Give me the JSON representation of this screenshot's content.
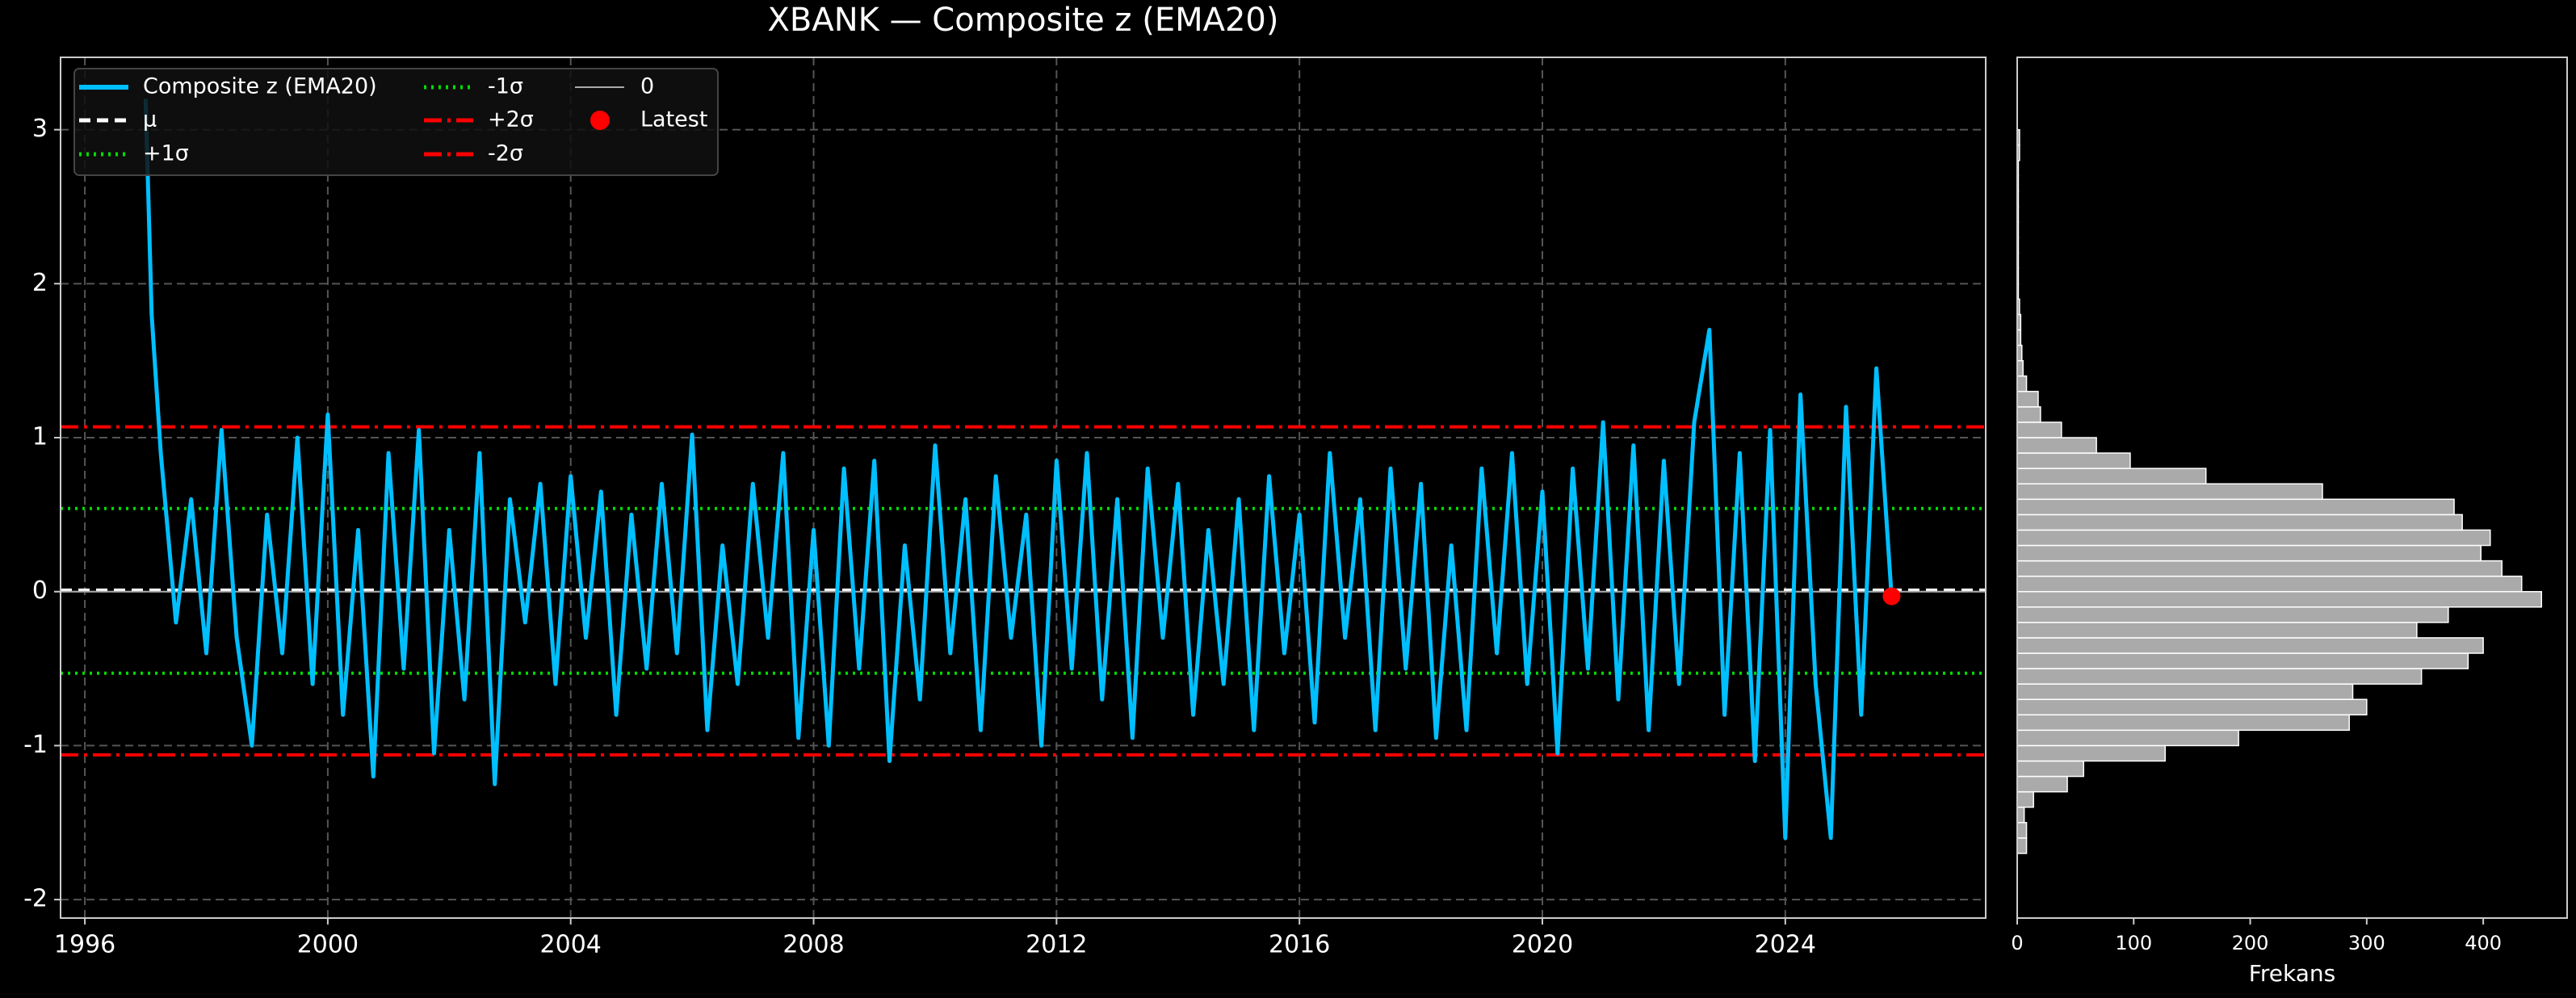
{
  "chart_data": [
    {
      "type": "line",
      "title": "XBANK — Composite z (EMA20)",
      "x": [
        1997.0,
        1997.1,
        1997.25,
        1997.5,
        1997.75,
        1998,
        1998.25,
        1998.5,
        1998.75,
        1999,
        1999.25,
        1999.5,
        1999.75,
        2000,
        2000.25,
        2000.5,
        2000.75,
        2001,
        2001.25,
        2001.5,
        2001.75,
        2002,
        2002.25,
        2002.5,
        2002.75,
        2003,
        2003.25,
        2003.5,
        2003.75,
        2004,
        2004.25,
        2004.5,
        2004.75,
        2005,
        2005.25,
        2005.5,
        2005.75,
        2006,
        2006.25,
        2006.5,
        2006.75,
        2007,
        2007.25,
        2007.5,
        2007.75,
        2008,
        2008.25,
        2008.5,
        2008.75,
        2009,
        2009.25,
        2009.5,
        2009.75,
        2010,
        2010.25,
        2010.5,
        2010.75,
        2011,
        2011.25,
        2011.5,
        2011.75,
        2012,
        2012.25,
        2012.5,
        2012.75,
        2013,
        2013.25,
        2013.5,
        2013.75,
        2014,
        2014.25,
        2014.5,
        2014.75,
        2015,
        2015.25,
        2015.5,
        2015.75,
        2016,
        2016.25,
        2016.5,
        2016.75,
        2017,
        2017.25,
        2017.5,
        2017.75,
        2018,
        2018.25,
        2018.5,
        2018.75,
        2019,
        2019.25,
        2019.5,
        2019.75,
        2020,
        2020.25,
        2020.5,
        2020.75,
        2021,
        2021.25,
        2021.5,
        2021.75,
        2022,
        2022.25,
        2022.5,
        2022.75,
        2023,
        2023.25,
        2023.5,
        2023.75,
        2024,
        2024.25,
        2024.5,
        2024.75,
        2025,
        2025.25,
        2025.5,
        2025.75
      ],
      "series": [
        {
          "name": "Composite z (EMA20)",
          "color": "#00bfff",
          "values": [
            3.2,
            1.8,
            0.9,
            -0.2,
            0.6,
            -0.4,
            1.05,
            -0.3,
            -1.0,
            0.5,
            -0.4,
            1.0,
            -0.6,
            1.15,
            -0.8,
            0.4,
            -1.2,
            0.9,
            -0.5,
            1.05,
            -1.05,
            0.4,
            -0.7,
            0.9,
            -1.25,
            0.6,
            -0.2,
            0.7,
            -0.6,
            0.75,
            -0.3,
            0.65,
            -0.8,
            0.5,
            -0.5,
            0.7,
            -0.4,
            1.02,
            -0.9,
            0.3,
            -0.6,
            0.7,
            -0.3,
            0.9,
            -0.95,
            0.4,
            -1.0,
            0.8,
            -0.5,
            0.85,
            -1.1,
            0.3,
            -0.7,
            0.95,
            -0.4,
            0.6,
            -0.9,
            0.75,
            -0.3,
            0.5,
            -1.0,
            0.85,
            -0.5,
            0.9,
            -0.7,
            0.6,
            -0.95,
            0.8,
            -0.3,
            0.7,
            -0.8,
            0.4,
            -0.6,
            0.6,
            -0.9,
            0.75,
            -0.4,
            0.5,
            -0.85,
            0.9,
            -0.3,
            0.6,
            -0.9,
            0.8,
            -0.5,
            0.7,
            -0.95,
            0.3,
            -0.9,
            0.8,
            -0.4,
            0.9,
            -0.6,
            0.65,
            -1.05,
            0.8,
            -0.5,
            1.1,
            -0.7,
            0.95,
            -0.9,
            0.85,
            -0.6,
            1.1,
            1.7,
            -0.8,
            0.9,
            -1.1,
            1.05,
            -1.6,
            1.28,
            -0.6,
            -1.6,
            1.2,
            -0.8,
            1.45,
            -0.03
          ]
        }
      ],
      "hlines": [
        {
          "name": "μ",
          "value": 0.01,
          "color": "#ffffff",
          "style": "dashed"
        },
        {
          "name": "+1σ",
          "value": 0.54,
          "color": "#00dd00",
          "style": "dotted"
        },
        {
          "name": "-1σ",
          "value": -0.53,
          "color": "#00dd00",
          "style": "dotted"
        },
        {
          "name": "+2σ",
          "value": 1.07,
          "color": "#ff0000",
          "style": "dashdot"
        },
        {
          "name": "-2σ",
          "value": -1.06,
          "color": "#ff0000",
          "style": "dashdot"
        },
        {
          "name": "0",
          "value": 0,
          "color": "#aaaaaa",
          "style": "solid"
        }
      ],
      "point": {
        "name": "Latest",
        "x": 2025.75,
        "y": -0.03,
        "color": "#ff0000"
      },
      "xlim": [
        1995.6,
        2027.3
      ],
      "xticks": [
        1996,
        2000,
        2004,
        2008,
        2012,
        2016,
        2020,
        2024
      ],
      "ylim": [
        -2.12,
        3.47
      ],
      "yticks": [
        -2,
        -1,
        0,
        1,
        2,
        3
      ],
      "grid": true,
      "legend": "upper left"
    },
    {
      "type": "histogram",
      "orientation": "horizontal",
      "xlabel": "Frekans",
      "color": "#aaaaaa",
      "bins": [
        -1.7,
        -1.6,
        -1.5,
        -1.4,
        -1.3,
        -1.2,
        -1.1,
        -1.0,
        -0.9,
        -0.8,
        -0.7,
        -0.6,
        -0.5,
        -0.4,
        -0.3,
        -0.2,
        -0.1,
        0.0,
        0.1,
        0.2,
        0.3,
        0.4,
        0.5,
        0.6,
        0.7,
        0.8,
        0.9,
        1.0,
        1.1,
        1.2,
        1.3,
        1.4,
        1.5,
        1.6,
        1.7,
        1.8,
        1.9,
        2.0,
        2.1,
        2.2,
        2.3,
        2.4,
        2.5,
        2.6,
        2.7,
        2.8,
        2.9,
        3.0
      ],
      "values": [
        8,
        8,
        6,
        14,
        43,
        57,
        127,
        190,
        285,
        300,
        288,
        347,
        387,
        400,
        343,
        370,
        450,
        433,
        416,
        398,
        406,
        382,
        375,
        262,
        162,
        97,
        68,
        38,
        20,
        18,
        8,
        5,
        4,
        3,
        3,
        2,
        1,
        1,
        1,
        1,
        1,
        1,
        1,
        1,
        1,
        2,
        2
      ],
      "xlim": [
        0,
        472
      ],
      "xticks": [
        0,
        100,
        200,
        300,
        400
      ],
      "ylim": [
        -2.12,
        3.47
      ]
    }
  ]
}
